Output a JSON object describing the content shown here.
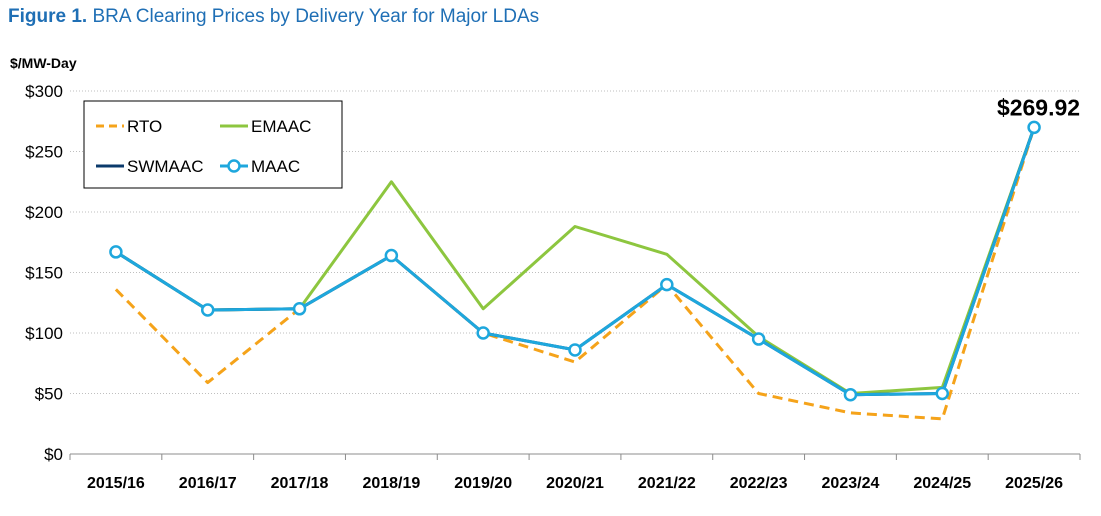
{
  "figure": {
    "number": "Figure 1.",
    "title": "BRA Clearing Prices by Delivery Year for Major LDAs"
  },
  "chart_data": {
    "type": "line",
    "ylabel": "$/MW-Day",
    "ylim": [
      0,
      300
    ],
    "yticks": [
      0,
      50,
      100,
      150,
      200,
      250,
      300
    ],
    "ytick_labels": [
      "$0",
      "$50",
      "$100",
      "$150",
      "$200",
      "$250",
      "$300"
    ],
    "categories": [
      "2015/16",
      "2016/17",
      "2017/18",
      "2018/19",
      "2019/20",
      "2020/21",
      "2021/22",
      "2022/23",
      "2023/24",
      "2024/25",
      "2025/26"
    ],
    "grid": true,
    "legend_position": "top-left",
    "series": [
      {
        "name": "RTO",
        "color": "#f5a31a",
        "style": "dashed",
        "marker": "none",
        "values": [
          136,
          59,
          120,
          164,
          100,
          76,
          140,
          50,
          34,
          29,
          269.92
        ]
      },
      {
        "name": "EMAAC",
        "color": "#8dc63f",
        "style": "solid",
        "marker": "none",
        "values": [
          167,
          119,
          120,
          225,
          120,
          188,
          165,
          97,
          50,
          55,
          269.92
        ]
      },
      {
        "name": "SWMAAC",
        "color": "#0b3a6b",
        "style": "solid",
        "marker": "none",
        "values": [
          167,
          119,
          120,
          164,
          100,
          86,
          140,
          95,
          49,
          50,
          269.92
        ]
      },
      {
        "name": "MAAC",
        "color": "#1ea7dd",
        "style": "solid",
        "marker": "circle",
        "values": [
          167,
          119,
          120,
          164,
          100,
          86,
          140,
          95,
          49,
          50,
          269.92
        ]
      }
    ],
    "annotation": {
      "text": "$269.92",
      "category": "2025/26",
      "value": 269.92
    }
  }
}
